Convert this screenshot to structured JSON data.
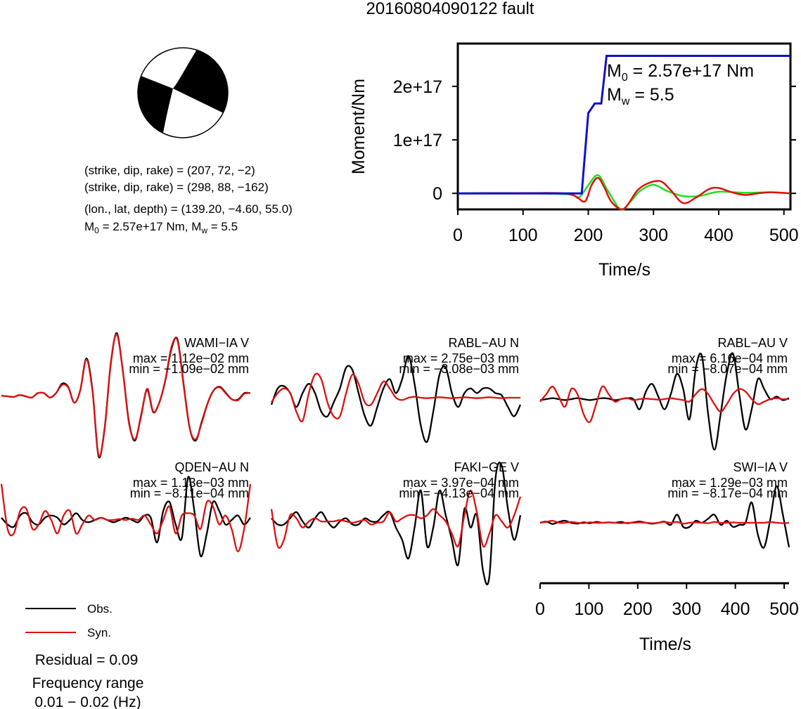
{
  "title": "20160804090122 fault",
  "source_info": {
    "line1": "(strike, dip, rake) = (207, 72, −2)",
    "line2": "(strike, dip, rake) = (298, 88, −162)",
    "line3": "(lon., lat, depth) = (139.20, −4.60, 55.0)",
    "m0_label": "M",
    "m0_sub": "0",
    "m0_rest": " = 2.57e+17 Nm, M",
    "mw_sub": "w",
    "mw_rest": " = 5.5"
  },
  "legend": {
    "obs": "Obs.",
    "syn": "Syn.",
    "obs_color": "#000000",
    "syn_color": "#dd1111"
  },
  "residual": "Residual = 0.09",
  "freq_label": "Frequency range",
  "freq_value": "0.01 − 0.02 (Hz)",
  "waveform_axis": {
    "xlabel": "Time/s",
    "ticks": [
      "0",
      "100",
      "200",
      "300",
      "400",
      "500"
    ]
  },
  "chart_data": [
    {
      "type": "line",
      "name": "moment-rate",
      "xlabel": "Time/s",
      "ylabel": "Moment/Nm",
      "xlim": [
        0,
        510
      ],
      "ylim": [
        -3e+16,
        2.8e+17
      ],
      "x_ticks": [
        "0",
        "100",
        "200",
        "300",
        "400",
        "500"
      ],
      "y_ticks": [
        "0",
        "1e+17",
        "2e+17"
      ],
      "y_tick_values": [
        0,
        1e+17,
        2e+17
      ],
      "annotation": {
        "m0_prefix": "M",
        "m0_sub": "0",
        "m0_text": " = 2.57e+17 Nm",
        "mw_prefix": "M",
        "mw_sub": "w",
        "mw_text": " = 5.5"
      },
      "series": [
        {
          "color": "#1111cc",
          "x": [
            0,
            190,
            200,
            210,
            220,
            228,
            510
          ],
          "y": [
            0,
            0,
            1.5e+17,
            1.68e+17,
            1.68e+17,
            2.57e+17,
            2.57e+17
          ]
        },
        {
          "color": "#dd1111",
          "x": [
            0,
            40,
            100,
            160,
            180,
            195,
            205,
            215,
            225,
            235,
            250,
            260,
            275,
            290,
            310,
            325,
            345,
            365,
            385,
            400,
            420,
            440,
            460,
            480,
            510
          ],
          "y": [
            0,
            300000000000000.0,
            500000000000000.0,
            200000000000000.0,
            -5000000000000000.0,
            -1.5e+16,
            1.5e+16,
            2.9e+16,
            1e+16,
            -1.5e+16,
            -3e+16,
            -2.2e+16,
            5000000000000000.0,
            1.8e+16,
            2.3e+16,
            8000000000000000.0,
            -1.8e+16,
            -8000000000000000.0,
            8000000000000000.0,
            1e+16,
            2000000000000000.0,
            -3000000000000000.0,
            0,
            2000000000000000.0,
            0
          ]
        },
        {
          "color": "#22dd22",
          "x": [
            0,
            100,
            170,
            185,
            200,
            215,
            230,
            250,
            265,
            280,
            300,
            320,
            345,
            370,
            400,
            440,
            480,
            510
          ],
          "y": [
            0,
            200000000000000.0,
            -2000000000000000.0,
            -8000000000000000.0,
            1.5e+16,
            3.4e+16,
            5000000000000000.0,
            -3e+16,
            -1.5e+16,
            5000000000000000.0,
            1.6e+16,
            5000000000000000.0,
            -5000000000000000.0,
            -5000000000000000.0,
            3000000000000000.0,
            1000000000000000.0,
            2000000000000000.0,
            0
          ]
        }
      ]
    },
    {
      "type": "line",
      "name": "waveform-WAMI-IA-V",
      "station": "WAMI−IA V",
      "max_label": "max = 1.12e−02 mm",
      "min_label": "min = −1.09e−02 mm",
      "series": [
        {
          "name": "Obs.",
          "color": "#000000",
          "y": [
            0.01,
            0.0,
            -0.01,
            0.02,
            0.0,
            -0.02,
            0.05,
            0.05,
            -0.02,
            0.05,
            0.2,
            0.15,
            -0.1,
            0.1,
            0.6,
            0.1,
            -0.95,
            -0.5,
            0.5,
            1.0,
            0.4,
            -0.4,
            -0.7,
            -0.3,
            0.1,
            -0.25,
            -0.1,
            0.25,
            0.75,
            0.9,
            0.2,
            -0.5,
            -0.7,
            -0.4,
            -0.1,
            0.1,
            0.15,
            0.05,
            -0.05,
            -0.05,
            0.05,
            0.05
          ]
        },
        {
          "name": "Syn.",
          "color": "#dd1111",
          "y": [
            0.01,
            0.0,
            -0.01,
            0.02,
            0.0,
            -0.02,
            0.05,
            0.05,
            -0.02,
            0.05,
            0.18,
            0.14,
            -0.1,
            0.1,
            0.58,
            0.08,
            -0.93,
            -0.52,
            0.52,
            0.98,
            0.4,
            -0.42,
            -0.68,
            -0.32,
            0.12,
            -0.24,
            -0.1,
            0.26,
            0.78,
            0.88,
            0.18,
            -0.5,
            -0.68,
            -0.42,
            -0.1,
            0.1,
            0.14,
            0.04,
            -0.05,
            -0.06,
            0.04,
            0.05
          ]
        }
      ]
    },
    {
      "type": "line",
      "name": "waveform-RABL-AU-N",
      "station": "RABL−AU N",
      "max_label": "max = 2.75e−03 mm",
      "min_label": "min = −3.08e−03 mm",
      "series": [
        {
          "name": "Obs.",
          "color": "#000000",
          "y": [
            -0.15,
            0.2,
            0.25,
            0.1,
            -0.2,
            0.1,
            0.3,
            0.1,
            -0.3,
            -0.4,
            -0.1,
            0.2,
            0.65,
            0.6,
            0.1,
            -0.4,
            -0.6,
            -0.2,
            0.2,
            0.4,
            0.1,
            0.4,
            0.9,
            0.3,
            -0.6,
            -0.95,
            -0.3,
            0.5,
            0.65,
            0.1,
            -0.2,
            0.1,
            0.2,
            0.1,
            0.2,
            0.2,
            0.1,
            0.05,
            -0.2,
            -0.4,
            -0.15
          ]
        },
        {
          "name": "Syn.",
          "color": "#dd1111",
          "y": [
            -0.1,
            0.1,
            0.2,
            0.1,
            -0.3,
            -0.5,
            0.1,
            0.5,
            0.4,
            -0.1,
            -0.4,
            -0.4,
            0.1,
            0.5,
            0.3,
            -0.1,
            -0.15,
            0.1,
            0.35,
            0.2,
            0.0,
            -0.05,
            0.0,
            0.02,
            0.0,
            -0.01,
            0.0,
            0.01,
            0.0,
            -0.01,
            0.0,
            0.01,
            0.0,
            -0.01,
            0.0,
            0.01,
            0.0,
            -0.01,
            0.0,
            0.0,
            0.0
          ]
        }
      ]
    },
    {
      "type": "line",
      "name": "waveform-RABL-AU-V",
      "station": "RABL−AU V",
      "max_label": "max = 6.16e−04 mm",
      "min_label": "min = −8.07e−04 mm",
      "series": [
        {
          "name": "Obs.",
          "color": "#000000",
          "y": [
            -0.02,
            0.0,
            0.02,
            0.0,
            -0.02,
            0.0,
            0.02,
            0.0,
            -0.02,
            0.0,
            0.02,
            0.01,
            -0.02,
            0.0,
            0.02,
            0.0,
            -0.2,
            0.15,
            0.3,
            0.05,
            -0.2,
            0.1,
            0.5,
            0.2,
            -0.4,
            0.6,
            0.85,
            -0.3,
            -1.0,
            -0.3,
            0.5,
            0.9,
            0.1,
            -0.6,
            -0.2,
            0.4,
            0.2,
            0.0,
            0.05,
            -0.02,
            0.02
          ]
        },
        {
          "name": "Syn.",
          "color": "#dd1111",
          "y": [
            -0.05,
            0.1,
            0.25,
            0.05,
            -0.15,
            0.2,
            0.1,
            -0.3,
            -0.45,
            -0.1,
            0.25,
            0.1,
            -0.05,
            0.0,
            0.02,
            -0.02,
            0.0,
            0.01,
            0.0,
            -0.01,
            0.0,
            0.02,
            0.0,
            -0.02,
            -0.05,
            0.1,
            0.2,
            0.1,
            -0.1,
            -0.25,
            -0.1,
            0.1,
            0.2,
            0.15,
            0.0,
            -0.1,
            -0.05,
            0.0,
            0.02,
            0.0,
            0.0
          ]
        }
      ]
    },
    {
      "type": "line",
      "name": "waveform-QDEN-AU-N",
      "station": "QDEN−AU N",
      "max_label": "max = 1.13e−03 mm",
      "min_label": "min = −8.11e−04 mm",
      "series": [
        {
          "name": "Obs.",
          "color": "#000000",
          "y": [
            0.05,
            -0.1,
            -0.15,
            0.1,
            0.15,
            -0.05,
            -0.1,
            0.05,
            0.1,
            0.05,
            -0.1,
            0.0,
            0.15,
            0.0,
            -0.05,
            0.0,
            0.05,
            0.0,
            -0.05,
            0.0,
            0.05,
            0.0,
            -0.05,
            0.1,
            0.05,
            -0.5,
            0.2,
            0.4,
            -0.1,
            -0.4,
            0.95,
            0.2,
            -0.8,
            -0.3,
            0.4,
            0.2,
            -0.1,
            0.0,
            0.1,
            -0.1,
            0.05
          ]
        },
        {
          "name": "Syn.",
          "color": "#dd1111",
          "y": [
            0.8,
            -0.2,
            -0.3,
            0.2,
            0.25,
            -0.2,
            -0.1,
            0.2,
            0.0,
            -0.3,
            0.1,
            0.2,
            -0.3,
            -0.1,
            0.1,
            0.0,
            0.05,
            0.0,
            0.0,
            0.02,
            0.0,
            0.03,
            0.0,
            0.1,
            -0.1,
            -0.3,
            0.0,
            0.3,
            -0.3,
            0.1,
            0.15,
            0.1,
            -0.2,
            0.4,
            0.3,
            -0.1,
            0.1,
            -0.2,
            -0.7,
            -0.2,
            0.8
          ]
        }
      ]
    },
    {
      "type": "line",
      "name": "waveform-FAKI-GE-V",
      "station": "FAKI−GE V",
      "max_label": "max = 3.97e−04 mm",
      "min_label": "min = −4.13e−04 mm",
      "series": [
        {
          "name": "Obs.",
          "color": "#000000",
          "y": [
            0.05,
            -0.05,
            -0.05,
            0.05,
            0.15,
            0.0,
            -0.1,
            0.05,
            0.15,
            0.0,
            -0.1,
            0.0,
            0.05,
            -0.05,
            -0.05,
            0.05,
            0.0,
            0.0,
            0.1,
            0.15,
            -0.1,
            -0.3,
            -0.6,
            -0.1,
            0.5,
            -0.4,
            -0.1,
            0.5,
            0.1,
            -0.3,
            -0.7,
            0.2,
            -0.1,
            0.1,
            -0.8,
            -0.9,
            0.7,
            0.9,
            0.2,
            -0.3,
            0.1
          ]
        },
        {
          "name": "Syn.",
          "color": "#dd1111",
          "y": [
            0.2,
            -0.4,
            -0.3,
            0.1,
            0.05,
            -0.1,
            0.0,
            0.05,
            0.0,
            0.0,
            0.0,
            0.02,
            0.0,
            -0.02,
            0.0,
            0.02,
            -0.05,
            -0.02,
            0.0,
            0.15,
            0.0,
            0.05,
            0.1,
            0.1,
            0.05,
            0.1,
            0.2,
            0.1,
            0.0,
            -0.2,
            -0.4,
            0.1,
            0.5,
            0.15,
            -0.4,
            -0.2,
            0.1,
            0.0,
            -0.1,
            0.1,
            0.4
          ]
        }
      ]
    },
    {
      "type": "line",
      "name": "waveform-SWI-IA-V",
      "station": "SWI−IA V",
      "max_label": "max = 1.29e−03 mm",
      "min_label": "min = −8.17e−04 mm",
      "series": [
        {
          "name": "Obs.",
          "color": "#000000",
          "y": [
            0.0,
            0.03,
            -0.03,
            0.02,
            0.05,
            0.0,
            -0.02,
            0.01,
            -0.01,
            0.02,
            0.0,
            0.01,
            0.0,
            0.02,
            -0.01,
            0.01,
            0.03,
            0.0,
            -0.02,
            0.0,
            0.03,
            -0.05,
            0.2,
            -0.1,
            -0.1,
            0.05,
            0.0,
            0.1,
            0.2,
            -0.05,
            0.05,
            -0.1,
            -0.05,
            0.0,
            0.5,
            -0.3,
            -0.6,
            0.1,
            0.9,
            0.2,
            -0.6
          ]
        },
        {
          "name": "Syn.",
          "color": "#dd1111",
          "y": [
            0.0,
            0.02,
            0.05,
            0.0,
            0.0,
            0.02,
            0.0,
            -0.01,
            0.01,
            0.0,
            0.0,
            0.01,
            0.0,
            -0.01,
            0.0,
            0.0,
            0.01,
            0.0,
            -0.01,
            0.0,
            0.02,
            0.0,
            0.02,
            -0.02,
            0.0,
            0.01,
            0.0,
            -0.01,
            0.02,
            0.0,
            0.0,
            0.01,
            0.0,
            0.0,
            0.0,
            0.0,
            0.0,
            0.02,
            0.0,
            -0.01,
            0.0
          ]
        }
      ]
    }
  ]
}
